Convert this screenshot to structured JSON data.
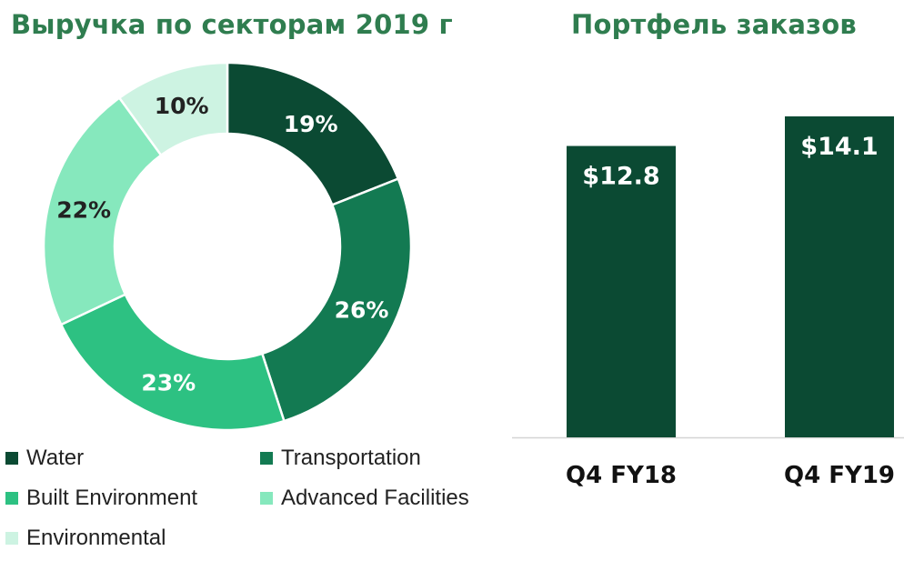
{
  "donut": {
    "title": "Выручка по секторам 2019 г",
    "chart_data": {
      "type": "pie",
      "style": "donut",
      "categories": [
        "Water",
        "Transportation",
        "Built Environment",
        "Advanced Facilities",
        "Environmental"
      ],
      "values": [
        19,
        26,
        23,
        22,
        10
      ],
      "labels": [
        "19%",
        "26%",
        "23%",
        "22%",
        "10%"
      ],
      "colors": [
        "#0b4a33",
        "#137a52",
        "#2dc182",
        "#86e8bd",
        "#cdf3e2"
      ],
      "label_colors": [
        "#ffffff",
        "#ffffff",
        "#ffffff",
        "#222222",
        "#222222"
      ],
      "legend_position": "bottom"
    }
  },
  "bars": {
    "title": "Портфель заказов",
    "chart_data": {
      "type": "bar",
      "categories": [
        "Q4 FY18",
        "Q4 FY19"
      ],
      "values": [
        12.8,
        14.1
      ],
      "labels": [
        "$12.8",
        "$14.1"
      ],
      "color": "#0b4a33"
    }
  }
}
